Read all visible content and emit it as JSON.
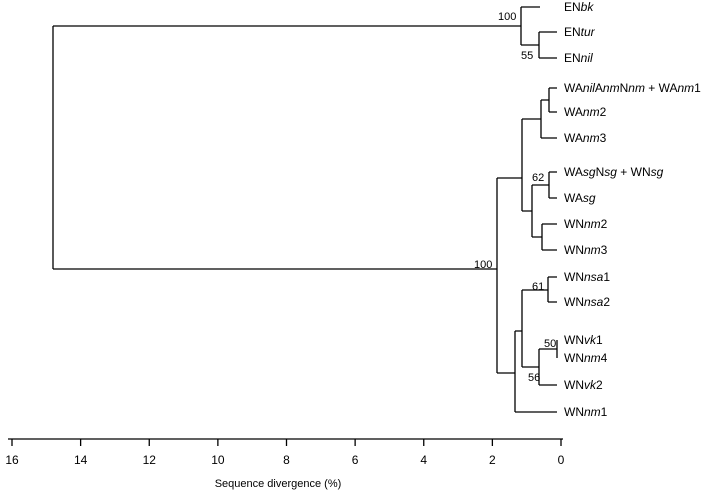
{
  "axis": {
    "title": "Sequence divergence (%)",
    "ticks": [
      "16",
      "14",
      "12",
      "10",
      "8",
      "6",
      "4",
      "2",
      "0"
    ]
  },
  "leaves": [
    [
      {
        "t": "EN"
      },
      {
        "t": "bk",
        "i": true
      }
    ],
    [
      {
        "t": "EN"
      },
      {
        "t": "tur",
        "i": true
      }
    ],
    [
      {
        "t": "EN"
      },
      {
        "t": "nil",
        "i": true
      }
    ],
    [
      {
        "t": "WA"
      },
      {
        "t": "nil",
        "i": true
      },
      {
        "t": "A"
      },
      {
        "t": "nm",
        "i": true
      },
      {
        "t": "N"
      },
      {
        "t": "nm",
        "i": true
      },
      {
        "t": " + WA"
      },
      {
        "t": "nm",
        "i": true
      },
      {
        "t": "1"
      }
    ],
    [
      {
        "t": "WA"
      },
      {
        "t": "nm",
        "i": true
      },
      {
        "t": "2"
      }
    ],
    [
      {
        "t": "WA"
      },
      {
        "t": "nm",
        "i": true
      },
      {
        "t": "3"
      }
    ],
    [
      {
        "t": "WA"
      },
      {
        "t": "sg",
        "i": true
      },
      {
        "t": "N"
      },
      {
        "t": "sg",
        "i": true
      },
      {
        "t": " + WN"
      },
      {
        "t": "sg",
        "i": true
      }
    ],
    [
      {
        "t": "WA"
      },
      {
        "t": "sg",
        "i": true
      }
    ],
    [
      {
        "t": "WN"
      },
      {
        "t": "nm",
        "i": true
      },
      {
        "t": "2"
      }
    ],
    [
      {
        "t": "WN"
      },
      {
        "t": "nm",
        "i": true
      },
      {
        "t": "3"
      }
    ],
    [
      {
        "t": "WN"
      },
      {
        "t": "nsa",
        "i": true
      },
      {
        "t": "1"
      }
    ],
    [
      {
        "t": "WN"
      },
      {
        "t": "nsa",
        "i": true
      },
      {
        "t": "2"
      }
    ],
    [
      {
        "t": "WN"
      },
      {
        "t": "vk",
        "i": true
      },
      {
        "t": "1"
      }
    ],
    [
      {
        "t": "WN"
      },
      {
        "t": "nm",
        "i": true
      },
      {
        "t": "4"
      }
    ],
    [
      {
        "t": "WN"
      },
      {
        "t": "vk",
        "i": true
      },
      {
        "t": "2"
      }
    ],
    [
      {
        "t": "WN"
      },
      {
        "t": "nm",
        "i": true
      },
      {
        "t": "1"
      }
    ]
  ],
  "bootstrap": {
    "root_en": "100",
    "en_tur_nil": "55",
    "root_wa_wn": "100",
    "wasg": "62",
    "wnnsa": "61",
    "wnvk1_nm4": "50",
    "wnvk_clade": "56"
  }
}
